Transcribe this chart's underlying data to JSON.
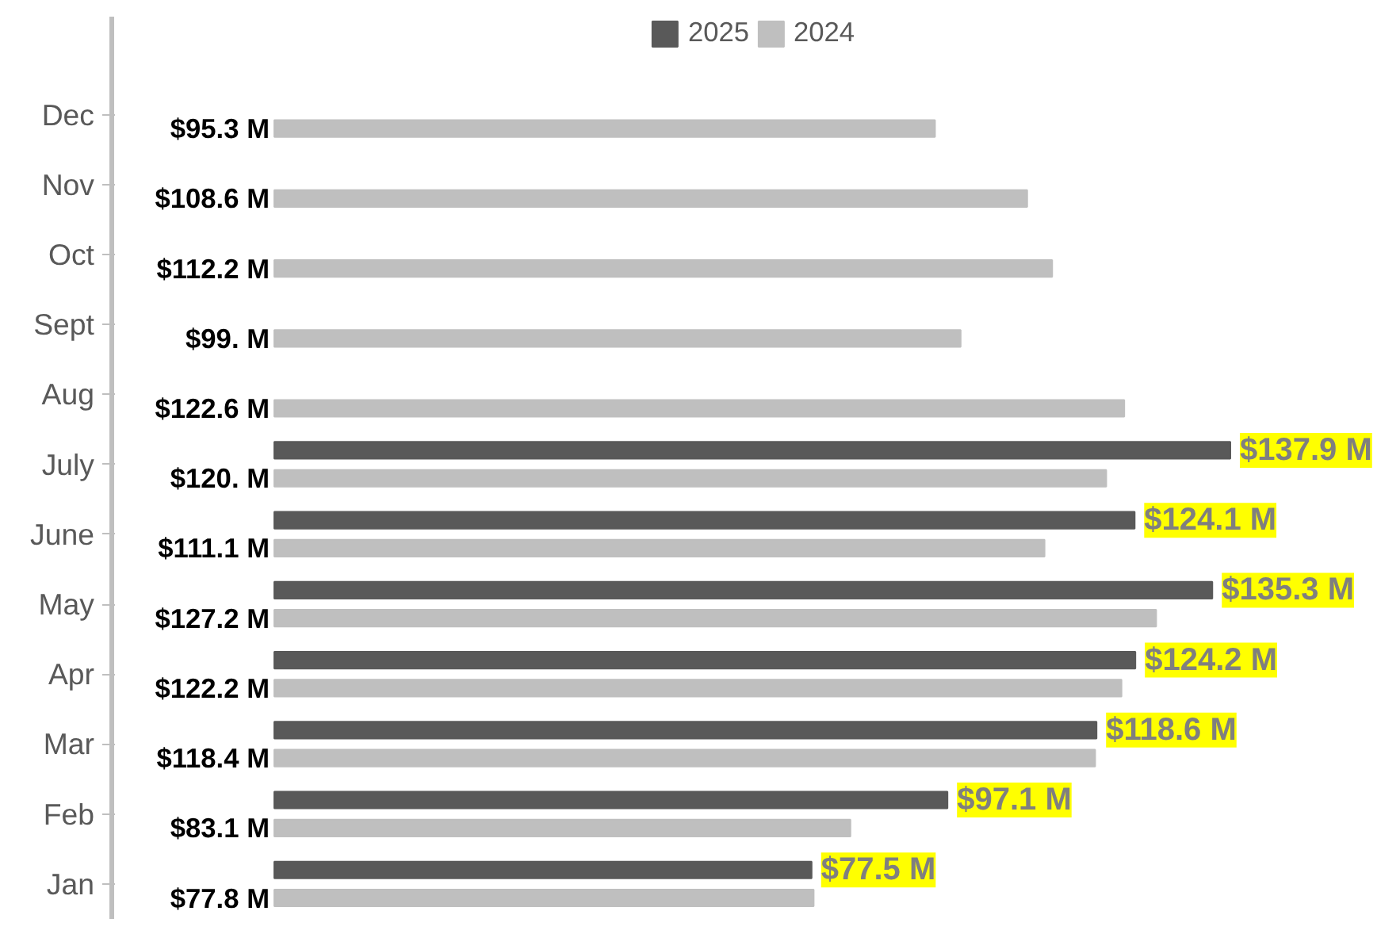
{
  "chart_data": {
    "type": "bar",
    "orientation": "horizontal",
    "categories": [
      "Dec",
      "Nov",
      "Oct",
      "Sept",
      "Aug",
      "July",
      "June",
      "May",
      "Apr",
      "Mar",
      "Feb",
      "Jan"
    ],
    "series": [
      {
        "name": "2025",
        "color": "#595959",
        "values": [
          null,
          null,
          null,
          null,
          null,
          137.9,
          124.1,
          135.3,
          124.2,
          118.6,
          97.1,
          77.5
        ],
        "value_labels": [
          null,
          null,
          null,
          null,
          null,
          "$137.9 M",
          "$124.1 M",
          "$135.3 M",
          "$124.2 M",
          "$118.6 M",
          "$97.1 M",
          "$77.5 M"
        ]
      },
      {
        "name": "2024",
        "color": "#bfbfbf",
        "values": [
          95.3,
          108.6,
          112.2,
          99.0,
          122.6,
          120.0,
          111.1,
          127.2,
          122.2,
          118.4,
          83.1,
          77.8
        ],
        "value_labels": [
          "$95.3 M",
          "$108.6 M",
          "$112.2 M",
          "$99. M",
          "$122.6 M",
          "$120. M",
          "$111.1 M",
          "$127.2 M",
          "$122.2 M",
          "$118.4 M",
          "$83.1 M",
          "$77.8 M"
        ]
      }
    ],
    "legend": "top"
  }
}
